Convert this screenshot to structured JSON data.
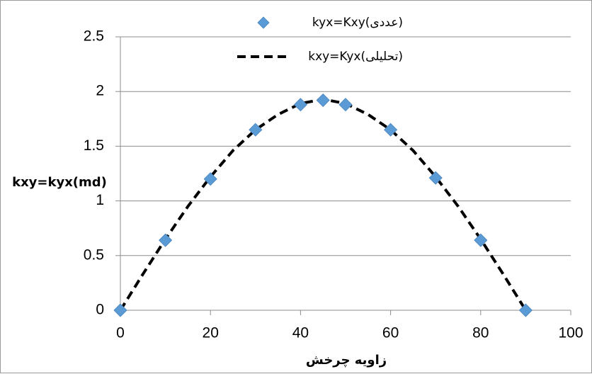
{
  "chart_data": {
    "type": "scatter",
    "xlabel": "زاویه چرخش",
    "ylabel": "kxy=kyx(md)",
    "xlim": [
      0,
      100
    ],
    "ylim": [
      0,
      2.5
    ],
    "x_ticks": [
      0,
      20,
      40,
      60,
      80,
      100
    ],
    "y_ticks": [
      0,
      0.5,
      1,
      1.5,
      2,
      2.5
    ],
    "x_tick_labels": [
      "0",
      "20",
      "40",
      "60",
      "80",
      "100"
    ],
    "y_tick_labels": [
      "0",
      "0.5",
      "1",
      "1.5",
      "2",
      "2.5"
    ],
    "grid": "horizontal",
    "legend_position": "top",
    "series": [
      {
        "name": "kyx=Kxy(عددی)",
        "marker": "diamond",
        "color": "#5b9bd5",
        "x": [
          0,
          10,
          20,
          30,
          40,
          45,
          50,
          60,
          70,
          80,
          90
        ],
        "y": [
          0,
          0.64,
          1.2,
          1.65,
          1.88,
          1.92,
          1.88,
          1.65,
          1.21,
          0.64,
          0
        ]
      },
      {
        "name": "kxy=Kyx(تحلیلی)",
        "line_style": "dashed",
        "color": "#000000",
        "x": [
          0,
          5,
          10,
          15,
          20,
          25,
          30,
          35,
          40,
          45,
          50,
          55,
          60,
          65,
          70,
          75,
          80,
          85,
          90
        ],
        "y": [
          0,
          0.33,
          0.65,
          0.95,
          1.22,
          1.46,
          1.65,
          1.79,
          1.89,
          1.93,
          1.89,
          1.79,
          1.65,
          1.46,
          1.22,
          0.95,
          0.65,
          0.33,
          0
        ]
      }
    ]
  }
}
